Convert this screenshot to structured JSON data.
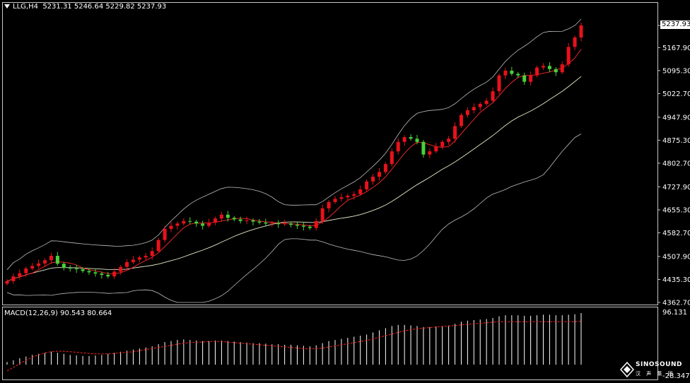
{
  "header": {
    "symbol": "LLG,H4",
    "ohlc": "5231.31 5246.64 5229.82 5237.93"
  },
  "macd": {
    "label": "MACD(12,26,9) 90.543 80.664",
    "top_value": "96.131",
    "bottom_value": "-28.347"
  },
  "current_price": "5237.93",
  "brand": {
    "name": "SINOSOUND",
    "sub": "汉 声 集 团"
  },
  "colors": {
    "up": "#e8121b",
    "down": "#49d13a",
    "band": "#bdbdbd",
    "mid": "#ffffff",
    "ma": "#ff2b2b",
    "macd_signal": "#ff2020",
    "macd_hist": "#ffffff"
  },
  "chart_data": {
    "type": "candlestick",
    "price_axis": [
      "5237.93",
      "5167.90",
      "5095.30",
      "5022.70",
      "4947.90",
      "4875.30",
      "4802.70",
      "4727.90",
      "4655.30",
      "4582.70",
      "4507.90",
      "4435.30",
      "4362.70"
    ],
    "ylim": [
      4362.7,
      5237.93
    ],
    "closes": [
      4430,
      4445,
      4455,
      4470,
      4478,
      4486,
      4496,
      4510,
      4485,
      4472,
      4470,
      4468,
      4462,
      4458,
      4454,
      4450,
      4445,
      4460,
      4475,
      4490,
      4498,
      4505,
      4510,
      4525,
      4560,
      4595,
      4605,
      4612,
      4620,
      4618,
      4612,
      4605,
      4615,
      4628,
      4640,
      4630,
      4625,
      4620,
      4622,
      4618,
      4615,
      4612,
      4614,
      4610,
      4612,
      4608,
      4605,
      4602,
      4598,
      4620,
      4660,
      4680,
      4690,
      4695,
      4700,
      4705,
      4720,
      4745,
      4760,
      4775,
      4800,
      4840,
      4870,
      4885,
      4880,
      4870,
      4830,
      4840,
      4855,
      4870,
      4880,
      4920,
      4955,
      4970,
      4980,
      4990,
      5000,
      5030,
      5080,
      5095,
      5085,
      5080,
      5060,
      5080,
      5105,
      5110,
      5100,
      5090,
      5115,
      5170,
      5200,
      5237.93
    ],
    "macd_signal": [
      -12,
      -5,
      2,
      8,
      14,
      18,
      22,
      24,
      25,
      25,
      24,
      23,
      22,
      21,
      20,
      20,
      20,
      21,
      22,
      23,
      24,
      26,
      28,
      30,
      32,
      34,
      36,
      38,
      40,
      41,
      42,
      42,
      43,
      43,
      43,
      42,
      41,
      40,
      39,
      38,
      37,
      36,
      35,
      34,
      33,
      32,
      31,
      30,
      29,
      30,
      31,
      33,
      35,
      37,
      39,
      41,
      43,
      45,
      48,
      51,
      54,
      57,
      60,
      63,
      65,
      67,
      68,
      69,
      70,
      71,
      72,
      73,
      74,
      75,
      76,
      77,
      78,
      79,
      80,
      80,
      80,
      80,
      80,
      80,
      80,
      80,
      80,
      80,
      80,
      80,
      80,
      80.664
    ],
    "macd_hist": [
      5,
      8,
      12,
      15,
      18,
      20,
      22,
      24,
      22,
      20,
      18,
      17,
      16,
      16,
      17,
      18,
      20,
      22,
      24,
      26,
      28,
      30,
      32,
      34,
      38,
      42,
      44,
      46,
      47,
      46,
      45,
      44,
      44,
      45,
      45,
      44,
      43,
      42,
      41,
      40,
      40,
      39,
      38,
      38,
      37,
      37,
      36,
      35,
      34,
      36,
      40,
      44,
      46,
      48,
      50,
      52,
      54,
      56,
      60,
      64,
      68,
      72,
      74,
      74,
      73,
      72,
      70,
      70,
      71,
      72,
      73,
      76,
      80,
      82,
      83,
      84,
      85,
      87,
      90,
      92,
      92,
      92,
      91,
      91,
      92,
      93,
      93,
      92,
      92,
      93,
      94,
      96.131
    ]
  }
}
